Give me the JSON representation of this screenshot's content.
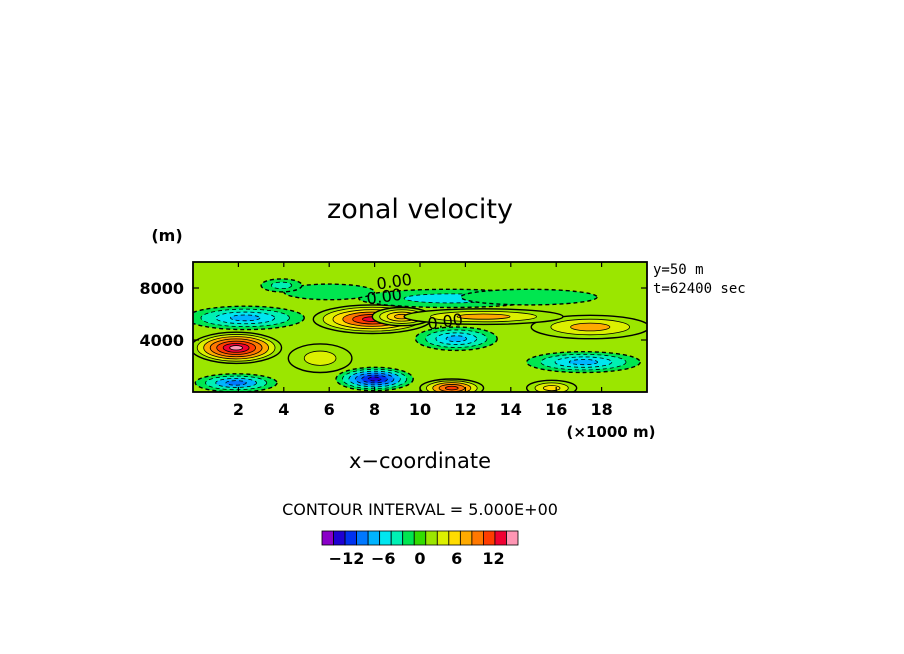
{
  "chart_data": {
    "type": "heatmap",
    "title": "zonal velocity",
    "xlabel": "x−coordinate",
    "x_unit_label": "(×1000 m)",
    "y_unit_label": "(m)",
    "x_range": [
      0,
      20
    ],
    "y_range": [
      0,
      10000
    ],
    "x_ticks": [
      "2",
      "4",
      "6",
      "8",
      "10",
      "12",
      "14",
      "16",
      "18"
    ],
    "y_ticks": [
      "4000",
      "8000"
    ],
    "annotations": [
      "y=50 m",
      "t=62400 sec"
    ],
    "contour_labels": [
      "0.00",
      "0.00",
      "0.00"
    ],
    "contour_interval_text": "CONTOUR INTERVAL = 5.000E+00",
    "colorbar": {
      "tick_labels": [
        "−12",
        "−6",
        "0",
        "6",
        "12"
      ],
      "tick_values": [
        -12,
        -6,
        0,
        6,
        12
      ],
      "range": [
        -16,
        16
      ],
      "colors": [
        "#8a00c8",
        "#1e00d2",
        "#0032f0",
        "#0078ff",
        "#00b4ff",
        "#00e6f0",
        "#00f0b4",
        "#00e650",
        "#32dc00",
        "#9be600",
        "#dcf000",
        "#ffdc00",
        "#ffaa00",
        "#ff7800",
        "#ff3c00",
        "#f00032",
        "#ff96b4"
      ]
    },
    "features": [
      {
        "x": 1.9,
        "y": 3400,
        "value": 16,
        "rx": 2.0,
        "ry": 1200
      },
      {
        "x": 7.9,
        "y": 5600,
        "value": 13,
        "rx": 2.6,
        "ry": 1100
      },
      {
        "x": 9.2,
        "y": 5800,
        "value": 8,
        "rx": 1.3,
        "ry": 700
      },
      {
        "x": 17.5,
        "y": 5000,
        "value": 7,
        "rx": 2.6,
        "ry": 900
      },
      {
        "x": 11.4,
        "y": 300,
        "value": 11,
        "rx": 1.4,
        "ry": 700
      },
      {
        "x": 15.8,
        "y": 300,
        "value": 6,
        "rx": 1.1,
        "ry": 600
      },
      {
        "x": 12.8,
        "y": 5800,
        "value": 7,
        "rx": 3.5,
        "ry": 600
      },
      {
        "x": 5.6,
        "y": 2600,
        "value": 4,
        "rx": 1.4,
        "ry": 1100
      },
      {
        "x": 2.3,
        "y": 5700,
        "value": -8,
        "rx": 2.6,
        "ry": 900
      },
      {
        "x": 1.9,
        "y": 700,
        "value": -9,
        "rx": 1.8,
        "ry": 700
      },
      {
        "x": 8.0,
        "y": 1000,
        "value": -14,
        "rx": 1.7,
        "ry": 900
      },
      {
        "x": 11.6,
        "y": 4100,
        "value": -8,
        "rx": 1.8,
        "ry": 900
      },
      {
        "x": 17.2,
        "y": 2300,
        "value": -8,
        "rx": 2.5,
        "ry": 800
      },
      {
        "x": 11.3,
        "y": 7200,
        "value": -5,
        "rx": 4.0,
        "ry": 700
      },
      {
        "x": 6.0,
        "y": 7700,
        "value": -2,
        "rx": 2.0,
        "ry": 600
      },
      {
        "x": 14.8,
        "y": 7300,
        "value": -2,
        "rx": 3.0,
        "ry": 600
      },
      {
        "x": 3.9,
        "y": 8200,
        "value": -3,
        "rx": 0.9,
        "ry": 500
      }
    ]
  }
}
